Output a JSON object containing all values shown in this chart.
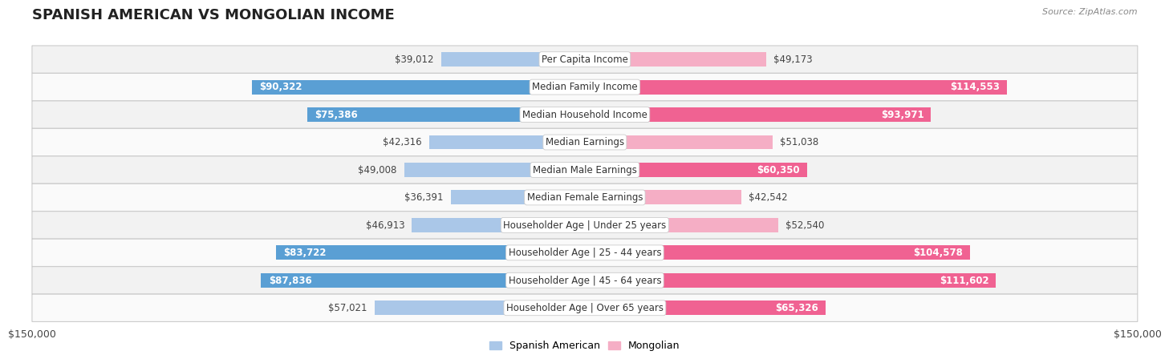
{
  "title": "SPANISH AMERICAN VS MONGOLIAN INCOME",
  "source": "Source: ZipAtlas.com",
  "categories": [
    "Per Capita Income",
    "Median Family Income",
    "Median Household Income",
    "Median Earnings",
    "Median Male Earnings",
    "Median Female Earnings",
    "Householder Age | Under 25 years",
    "Householder Age | 25 - 44 years",
    "Householder Age | 45 - 64 years",
    "Householder Age | Over 65 years"
  ],
  "spanish_american": [
    39012,
    90322,
    75386,
    42316,
    49008,
    36391,
    46913,
    83722,
    87836,
    57021
  ],
  "mongolian": [
    49173,
    114553,
    93971,
    51038,
    60350,
    42542,
    52540,
    104578,
    111602,
    65326
  ],
  "spanish_labels": [
    "$39,012",
    "$90,322",
    "$75,386",
    "$42,316",
    "$49,008",
    "$36,391",
    "$46,913",
    "$83,722",
    "$87,836",
    "$57,021"
  ],
  "mongolian_labels": [
    "$49,173",
    "$114,553",
    "$93,971",
    "$51,038",
    "$60,350",
    "$42,542",
    "$52,540",
    "$104,578",
    "$111,602",
    "$65,326"
  ],
  "color_spanish_light": "#aac7e8",
  "color_spanish_dark": "#5a9fd4",
  "color_mongolian_light": "#f5aec5",
  "color_mongolian_dark": "#f06292",
  "max_value": 150000,
  "axis_label": "$150,000",
  "bar_height": 0.52,
  "title_fontsize": 13,
  "label_fontsize": 8.5,
  "legend_fontsize": 9,
  "sa_large_threshold": 60000,
  "mg_large_threshold": 60000,
  "row_bg_even": "#f2f2f2",
  "row_bg_odd": "#fafafa",
  "row_border": "#cccccc"
}
